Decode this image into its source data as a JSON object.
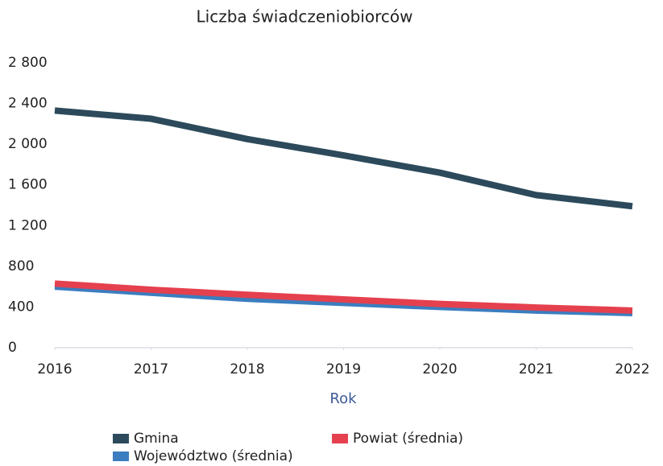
{
  "chart_data": {
    "type": "line",
    "title": "Liczba świadczeniobiorców",
    "x_label": "Rok",
    "x": [
      2016,
      2017,
      2018,
      2019,
      2020,
      2021,
      2022
    ],
    "xlim": [
      2016,
      2022
    ],
    "xticks": [
      2016,
      2017,
      2018,
      2019,
      2020,
      2021,
      2022
    ],
    "ylim": [
      0,
      2800
    ],
    "yticks": [
      0,
      400,
      800,
      {
        "value": 1200,
        "label": "1 200"
      },
      {
        "value": 1600,
        "label": "1 600"
      },
      {
        "value": 2000,
        "label": "2 000"
      },
      {
        "value": 2400,
        "label": "2 400"
      },
      {
        "value": 2800,
        "label": "2 800"
      }
    ],
    "grid": false,
    "legend": "bottom",
    "series": [
      {
        "name": "Gmina",
        "color": "#2c4a5b",
        "values": [
          2330,
          2250,
          2050,
          1890,
          1720,
          1500,
          1390
        ]
      },
      {
        "name": "Powiat (średnia)",
        "color": "#e5404e",
        "values": [
          630,
          570,
          520,
          475,
          430,
          395,
          365
        ]
      },
      {
        "name": "Województwo (średnia)",
        "color": "#3b7dbf",
        "values": [
          600,
          540,
          480,
          440,
          400,
          365,
          340
        ]
      }
    ]
  }
}
